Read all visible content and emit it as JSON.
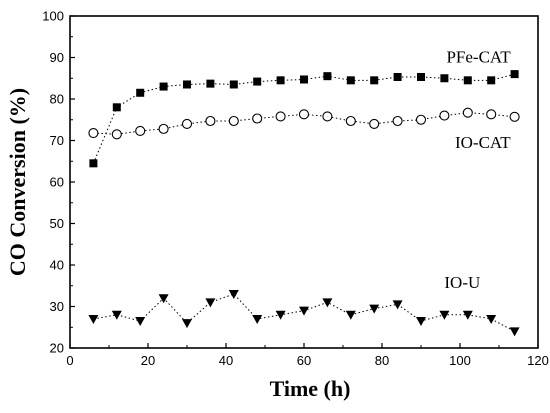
{
  "chart_data": {
    "type": "scatter",
    "xlabel": "Time (h)",
    "ylabel": "CO Conversion (%)",
    "xlim": [
      0,
      120
    ],
    "ylim": [
      20,
      100
    ],
    "xticks": [
      0,
      20,
      40,
      60,
      80,
      100,
      120
    ],
    "yticks": [
      20,
      30,
      40,
      50,
      60,
      70,
      80,
      90,
      100
    ],
    "grid": false,
    "legend": "inline labels near each series",
    "series": [
      {
        "name": "PFe-CAT",
        "marker": "filled-square",
        "line": "dotted",
        "color": "#000000",
        "x": [
          6,
          12,
          18,
          24,
          30,
          36,
          42,
          48,
          54,
          60,
          66,
          72,
          78,
          84,
          90,
          96,
          102,
          108,
          114
        ],
        "y": [
          64.5,
          78,
          81.5,
          83,
          83.5,
          83.7,
          83.5,
          84.2,
          84.5,
          84.7,
          85.5,
          84.5,
          84.5,
          85.3,
          85.3,
          85,
          84.5,
          84.5,
          86
        ]
      },
      {
        "name": "IO-CAT",
        "marker": "open-circle",
        "line": "dotted",
        "color": "#000000",
        "x": [
          6,
          12,
          18,
          24,
          30,
          36,
          42,
          48,
          54,
          60,
          66,
          72,
          78,
          84,
          90,
          96,
          102,
          108,
          114
        ],
        "y": [
          71.8,
          71.5,
          72.3,
          72.8,
          74,
          74.7,
          74.7,
          75.3,
          75.8,
          76.3,
          75.8,
          74.7,
          74,
          74.7,
          75,
          76,
          76.7,
          76.3,
          75.7
        ]
      },
      {
        "name": "IO-U",
        "marker": "filled-triangle-down",
        "line": "dotted",
        "color": "#000000",
        "x": [
          6,
          12,
          18,
          24,
          30,
          36,
          42,
          48,
          54,
          60,
          66,
          72,
          78,
          84,
          90,
          96,
          102,
          108,
          114
        ],
        "y": [
          27,
          28,
          26.5,
          32,
          26,
          31,
          33,
          27,
          28,
          29,
          31,
          28,
          29.5,
          30.5,
          26.5,
          28,
          28,
          27,
          24
        ]
      }
    ]
  }
}
